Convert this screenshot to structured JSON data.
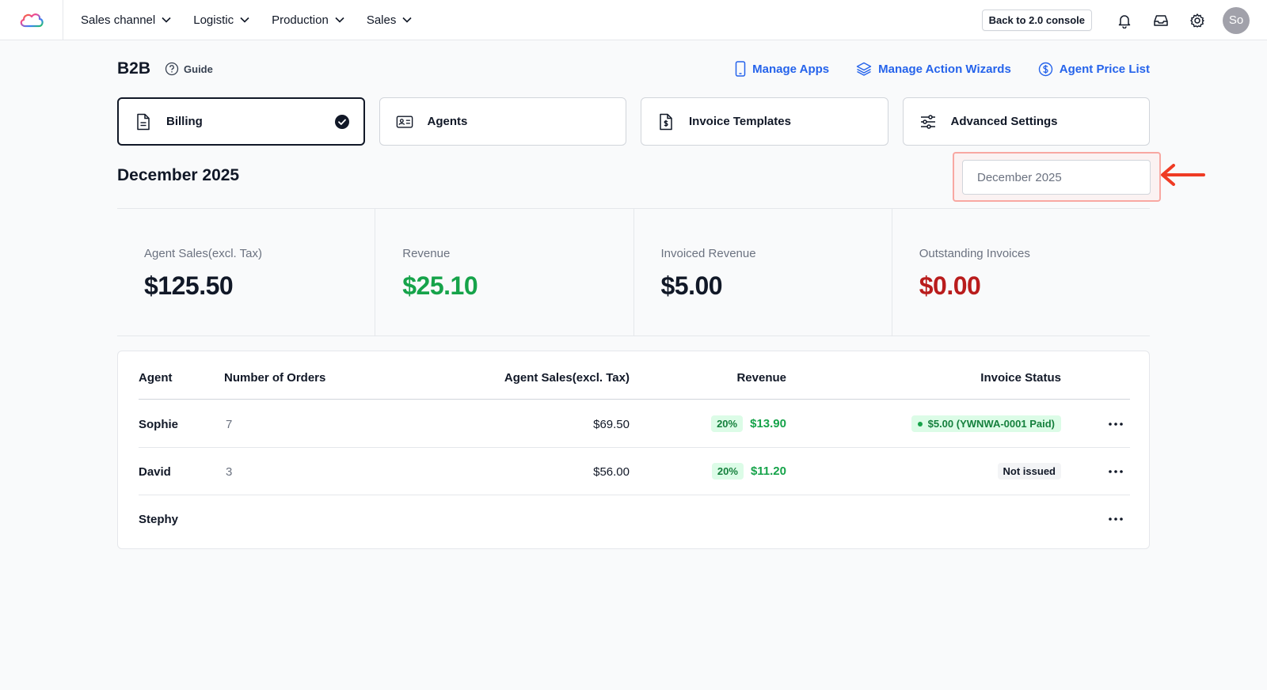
{
  "nav": {
    "items": [
      {
        "label": "Sales channel"
      },
      {
        "label": "Logistic"
      },
      {
        "label": "Production"
      },
      {
        "label": "Sales"
      }
    ],
    "console_button": "Back to 2.0 console",
    "avatar_initials": "So"
  },
  "header": {
    "title": "B2B",
    "guide_label": "Guide",
    "links": {
      "manage_apps": "Manage Apps",
      "manage_action_wizards": "Manage Action Wizards",
      "agent_price_list": "Agent Price List"
    }
  },
  "tabs": [
    {
      "label": "Billing",
      "active": true,
      "icon": "document-icon"
    },
    {
      "label": "Agents",
      "active": false,
      "icon": "id-card-icon"
    },
    {
      "label": "Invoice Templates",
      "active": false,
      "icon": "invoice-dollar-icon"
    },
    {
      "label": "Advanced Settings",
      "active": false,
      "icon": "sliders-icon"
    }
  ],
  "period": {
    "title": "December 2025",
    "picker_value": "December 2025"
  },
  "stats": {
    "agent_sales": {
      "label": "Agent Sales(excl. Tax)",
      "value": "$125.50",
      "color": "#111827"
    },
    "revenue": {
      "label": "Revenue",
      "value": "$25.10",
      "color": "#16a34a"
    },
    "invoiced_revenue": {
      "label": "Invoiced Revenue",
      "value": "$5.00",
      "color": "#111827"
    },
    "outstanding_invoices": {
      "label": "Outstanding Invoices",
      "value": "$0.00",
      "color": "#b91c1c"
    }
  },
  "table": {
    "columns": {
      "agent": "Agent",
      "orders": "Number of Orders",
      "sales": "Agent Sales(excl. Tax)",
      "revenue": "Revenue",
      "status": "Invoice Status"
    },
    "rows": [
      {
        "agent": "Sophie",
        "orders": "7",
        "sales": "$69.50",
        "pct": "20%",
        "revenue": "$13.90",
        "status": "$5.00 (YWNWA-0001 Paid)",
        "status_type": "paid"
      },
      {
        "agent": "David",
        "orders": "3",
        "sales": "$56.00",
        "pct": "20%",
        "revenue": "$11.20",
        "status": "Not issued",
        "status_type": "none"
      },
      {
        "agent": "Stephy",
        "orders": "",
        "sales": "",
        "pct": "",
        "revenue": "",
        "status": "",
        "status_type": ""
      }
    ]
  },
  "colors": {
    "accent": "#2563eb",
    "positive": "#16a34a",
    "negative": "#b91c1c",
    "highlight": "#f8a8a2",
    "arrow": "#ef3b24"
  }
}
